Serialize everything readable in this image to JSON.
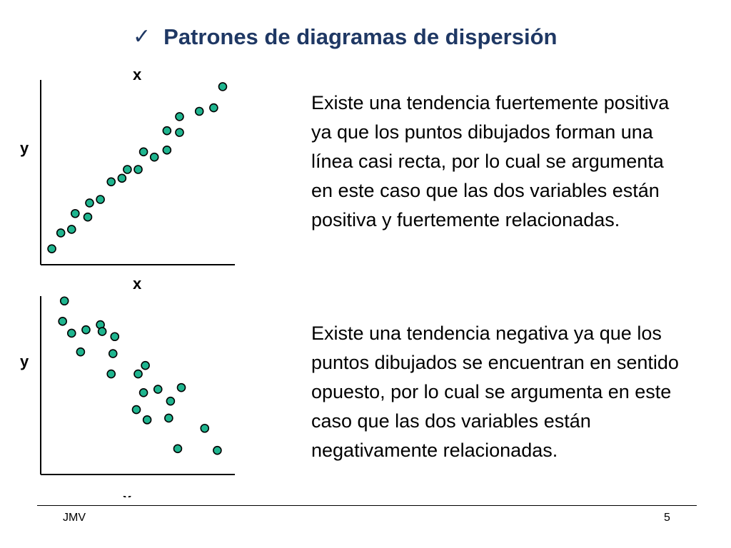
{
  "slide": {
    "title": "Patrones de diagramas de dispersión",
    "check_icon": "check-icon",
    "footer_left": "JMV",
    "page_number": "5"
  },
  "descriptions": [
    "Existe una tendencia fuertemente positiva ya que los puntos dibujados forman una línea casi recta, por lo cual se argumenta en este caso que las dos variables están positiva y fuertemente relacionadas.",
    "Existe una tendencia negativa ya que los puntos dibujados se encuentran en sentido opuesto, por lo cual se argumenta en este caso que las dos variables están negativamente relacionadas."
  ],
  "colors": {
    "title": "#1f3864",
    "point_fill": "#1fb58f",
    "point_stroke": "#000000"
  },
  "chart_data": [
    {
      "type": "scatter",
      "title": "",
      "xlabel": "x",
      "ylabel": "y",
      "xlim": [
        0,
        100
      ],
      "ylim": [
        0,
        100
      ],
      "grid": false,
      "points": [
        {
          "x": 3,
          "y": 5
        },
        {
          "x": 8,
          "y": 14
        },
        {
          "x": 14,
          "y": 16
        },
        {
          "x": 16,
          "y": 25
        },
        {
          "x": 23,
          "y": 23
        },
        {
          "x": 24,
          "y": 31
        },
        {
          "x": 30,
          "y": 33
        },
        {
          "x": 36,
          "y": 43
        },
        {
          "x": 42,
          "y": 45
        },
        {
          "x": 45,
          "y": 50
        },
        {
          "x": 51,
          "y": 50
        },
        {
          "x": 54,
          "y": 60
        },
        {
          "x": 60,
          "y": 57
        },
        {
          "x": 67,
          "y": 61
        },
        {
          "x": 67,
          "y": 72
        },
        {
          "x": 74,
          "y": 71
        },
        {
          "x": 74,
          "y": 80
        },
        {
          "x": 85,
          "y": 83
        },
        {
          "x": 93,
          "y": 85
        },
        {
          "x": 98,
          "y": 97
        }
      ]
    },
    {
      "type": "scatter",
      "title": "",
      "xlabel": "x",
      "ylabel": "y",
      "xlim": [
        0,
        100
      ],
      "ylim": [
        0,
        100
      ],
      "grid": false,
      "points": [
        {
          "x": 10,
          "y": 98
        },
        {
          "x": 9,
          "y": 86
        },
        {
          "x": 14,
          "y": 79
        },
        {
          "x": 22,
          "y": 81
        },
        {
          "x": 30,
          "y": 84
        },
        {
          "x": 31,
          "y": 80
        },
        {
          "x": 38,
          "y": 77
        },
        {
          "x": 19,
          "y": 68
        },
        {
          "x": 37,
          "y": 67
        },
        {
          "x": 36,
          "y": 55
        },
        {
          "x": 51,
          "y": 55
        },
        {
          "x": 55,
          "y": 60
        },
        {
          "x": 54,
          "y": 44
        },
        {
          "x": 62,
          "y": 46
        },
        {
          "x": 75,
          "y": 47
        },
        {
          "x": 69,
          "y": 39
        },
        {
          "x": 50,
          "y": 34
        },
        {
          "x": 56,
          "y": 28
        },
        {
          "x": 68,
          "y": 29
        },
        {
          "x": 88,
          "y": 23
        },
        {
          "x": 73,
          "y": 11
        },
        {
          "x": 95,
          "y": 10
        }
      ]
    }
  ]
}
